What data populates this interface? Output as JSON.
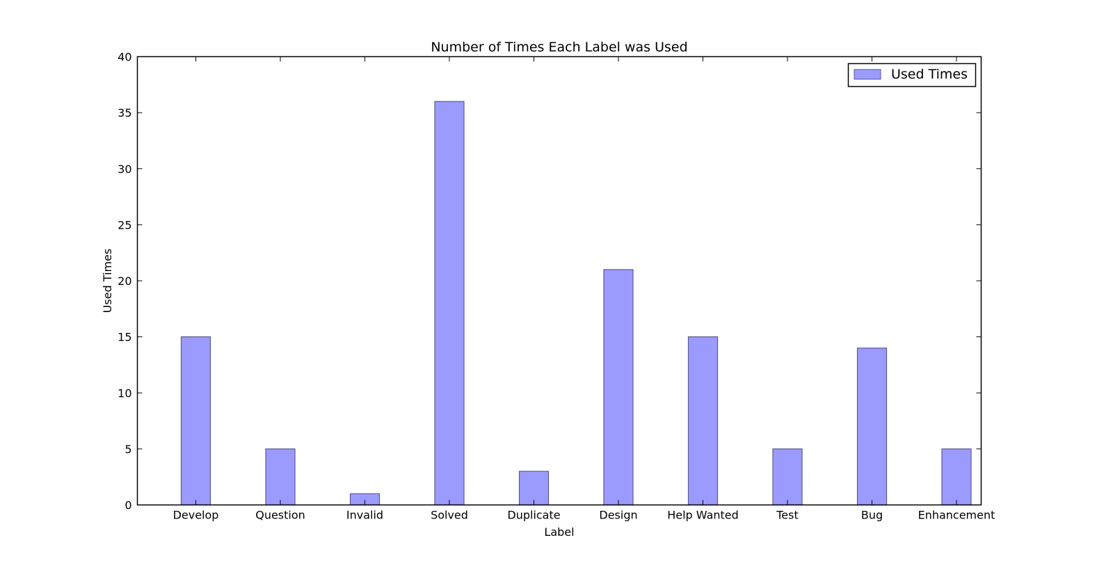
{
  "chart_data": {
    "type": "bar",
    "title": "Number of Times Each Label was Used",
    "xlabel": "Label",
    "ylabel": "Used Times",
    "categories": [
      "Develop",
      "Question",
      "Invalid",
      "Solved",
      "Duplicate",
      "Design",
      "Help Wanted",
      "Test",
      "Bug",
      "Enhancement"
    ],
    "series": [
      {
        "name": "Used Times",
        "values": [
          15,
          5,
          1,
          36,
          3,
          21,
          15,
          5,
          14,
          5
        ],
        "color": "#9b9bff",
        "edge_color": "#5a5a8c"
      }
    ],
    "ylim": [
      0,
      40
    ],
    "yticks": [
      0,
      5,
      10,
      15,
      20,
      25,
      30,
      35,
      40
    ],
    "grid": false,
    "legend_position": "top-right"
  }
}
